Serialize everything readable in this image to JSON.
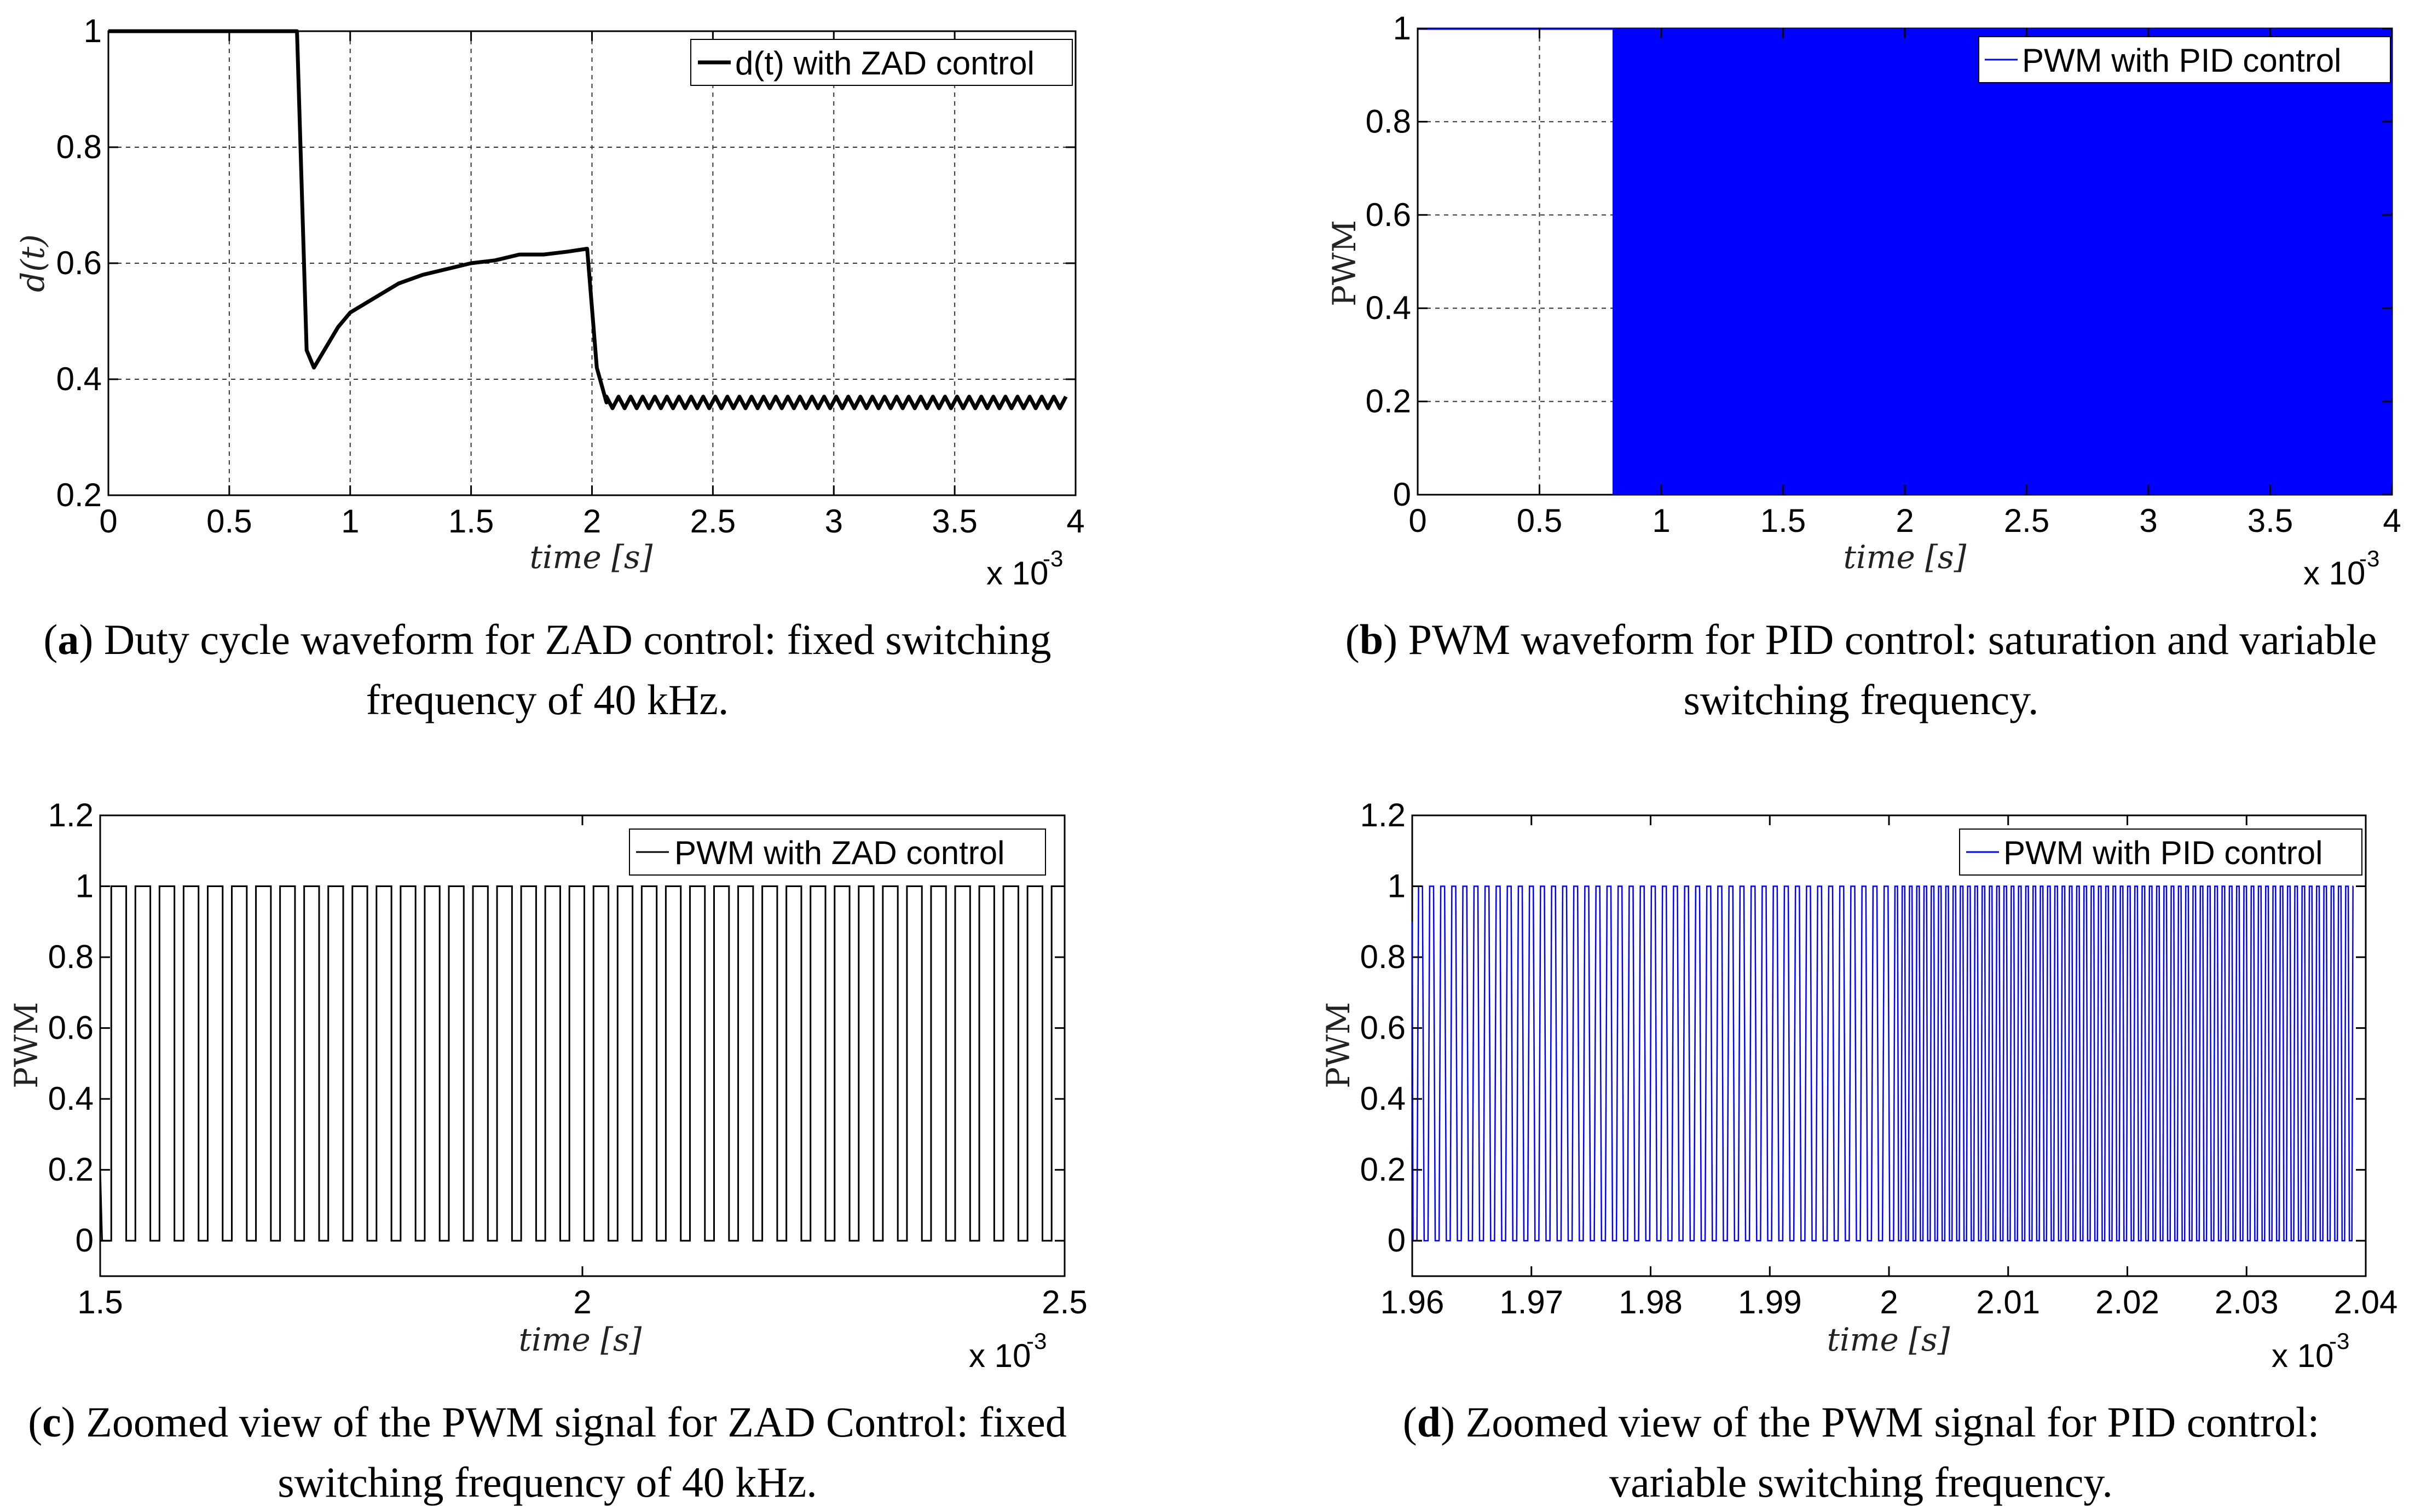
{
  "chart_data": [
    {
      "id": "a",
      "type": "line",
      "ylabel": "d(t)",
      "xlabel": "time [s]",
      "x_exponent": "x 10",
      "x_exponent_power": "-3",
      "xlim": [
        0,
        4
      ],
      "ylim": [
        0.2,
        1
      ],
      "xticks": [
        0,
        0.5,
        1,
        1.5,
        2,
        2.5,
        3,
        3.5,
        4
      ],
      "xtick_labels": [
        "0",
        "0.5",
        "1",
        "1.5",
        "2",
        "2.5",
        "3",
        "3.5",
        "4"
      ],
      "yticks": [
        0.2,
        0.4,
        0.6,
        0.8,
        1
      ],
      "ytick_labels": [
        "0.2",
        "0.4",
        "0.6",
        "0.8",
        "1"
      ],
      "grid": true,
      "legend": "d(t) with ZAD control",
      "legend_position": "top-right",
      "color": "#000000",
      "series": [
        {
          "name": "d(t) with ZAD control",
          "x": [
            0,
            0.78,
            0.82,
            0.85,
            0.9,
            0.95,
            1.0,
            1.1,
            1.2,
            1.3,
            1.4,
            1.5,
            1.6,
            1.7,
            1.8,
            1.9,
            1.98,
            2.02,
            2.06
          ],
          "y": [
            1,
            1,
            0.45,
            0.42,
            0.455,
            0.49,
            0.515,
            0.54,
            0.565,
            0.58,
            0.59,
            0.6,
            0.605,
            0.615,
            0.615,
            0.62,
            0.625,
            0.42,
            0.36
          ],
          "ripple_from": 2.06,
          "ripple_to": 3.98,
          "ripple_center": 0.36,
          "ripple_amp": 0.01,
          "ripple_period": 0.05
        }
      ]
    },
    {
      "id": "b",
      "type": "line",
      "ylabel": "PWM",
      "xlabel": "time [s]",
      "x_exponent": "x 10",
      "x_exponent_power": "-3",
      "xlim": [
        0,
        4
      ],
      "ylim": [
        0,
        1
      ],
      "xticks": [
        0,
        0.5,
        1,
        1.5,
        2,
        2.5,
        3,
        3.5,
        4
      ],
      "xtick_labels": [
        "0",
        "0.5",
        "1",
        "1.5",
        "2",
        "2.5",
        "3",
        "3.5",
        "4"
      ],
      "yticks": [
        0,
        0.2,
        0.4,
        0.6,
        0.8,
        1
      ],
      "ytick_labels": [
        "0",
        "0.2",
        "0.4",
        "0.6",
        "0.8",
        "1"
      ],
      "grid": true,
      "legend": "PWM with PID control",
      "legend_position": "top-right",
      "color": "#0000ff",
      "saturated_until": 0.8,
      "saturated_level": 1,
      "switching_from": 0.8,
      "switching_to": 4
    },
    {
      "id": "c",
      "type": "line",
      "ylabel": "PWM",
      "xlabel": "time [s]",
      "x_exponent": "x 10",
      "x_exponent_power": "-3",
      "xlim": [
        1.5,
        2.5
      ],
      "ylim": [
        -0.1,
        1.2
      ],
      "xticks": [
        1.5,
        2,
        2.5
      ],
      "xtick_labels": [
        "1.5",
        "2",
        "2.5"
      ],
      "yticks": [
        0,
        0.2,
        0.4,
        0.6,
        0.8,
        1,
        1.2
      ],
      "ytick_labels": [
        "0",
        "0.2",
        "0.4",
        "0.6",
        "0.8",
        "1",
        "1.2"
      ],
      "grid": false,
      "legend": "PWM with ZAD control",
      "legend_position": "top-right",
      "color": "#000000",
      "pwm_period": 0.025,
      "pwm_duty": 0.62,
      "pwm_start": 1.5,
      "pwm_end": 2.49
    },
    {
      "id": "d",
      "type": "line",
      "ylabel": "PWM",
      "xlabel": "time [s]",
      "x_exponent": "x 10",
      "x_exponent_power": "-3",
      "xlim": [
        1.96,
        2.04
      ],
      "ylim": [
        -0.1,
        1.2
      ],
      "xticks": [
        1.96,
        1.97,
        1.98,
        1.99,
        2.0,
        2.01,
        2.02,
        2.03,
        2.04
      ],
      "xtick_labels": [
        "1.96",
        "1.97",
        "1.98",
        "1.99",
        "2",
        "2.01",
        "2.02",
        "2.03",
        "2.04"
      ],
      "yticks": [
        0,
        0.2,
        0.4,
        0.6,
        0.8,
        1,
        1.2
      ],
      "ytick_labels": [
        "0",
        "0.2",
        "0.4",
        "0.6",
        "0.8",
        "1",
        "1.2"
      ],
      "grid": false,
      "legend": "PWM with PID control",
      "legend_position": "top-right",
      "color": "#0000ff",
      "pwm_period_before": 0.00093,
      "pwm_period_after": 0.00061,
      "pwm_change_at": 2.0,
      "pwm_start": 1.96,
      "pwm_end": 2.039
    }
  ],
  "captions": [
    {
      "label": "a",
      "line1": "Duty cycle waveform for ZAD control: fixed switching",
      "line2": "frequency of 40 kHz."
    },
    {
      "label": "b",
      "line1": "PWM waveform for PID control: saturation and variable",
      "line2": "switching frequency."
    },
    {
      "label": "c",
      "line1": "Zoomed view of the PWM signal for ZAD Control: fixed",
      "line2": "switching frequency of 40 kHz."
    },
    {
      "label": "d",
      "line1": "Zoomed view of the PWM signal for PID control:",
      "line2": "variable switching frequency."
    }
  ]
}
